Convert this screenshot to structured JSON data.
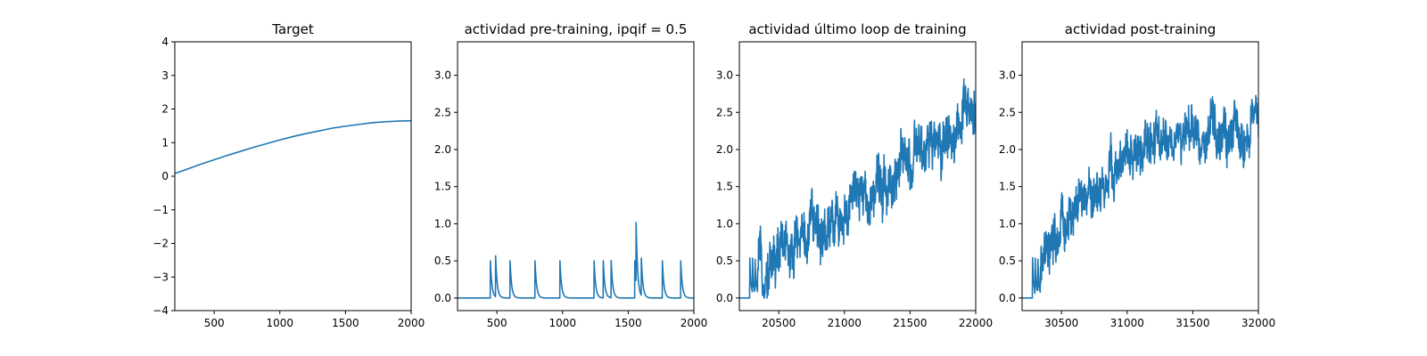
{
  "figure": {
    "line_color": "#1f77b4"
  },
  "chart_data": [
    {
      "type": "line",
      "title": "Target",
      "xlim": [
        200,
        2000
      ],
      "ylim": [
        -4,
        4
      ],
      "xticks": [
        500,
        1000,
        1500,
        2000
      ],
      "yticks": [
        -4,
        -3,
        -2,
        -1,
        0,
        1,
        2,
        3,
        4
      ],
      "series": [
        {
          "x": [
            200,
            300,
            400,
            500,
            600,
            700,
            800,
            900,
            1000,
            1100,
            1200,
            1300,
            1400,
            1500,
            1600,
            1700,
            1800,
            1900,
            2000
          ],
          "y": [
            0.08,
            0.22,
            0.36,
            0.49,
            0.62,
            0.74,
            0.86,
            0.97,
            1.08,
            1.18,
            1.27,
            1.35,
            1.43,
            1.49,
            1.54,
            1.59,
            1.62,
            1.64,
            1.65
          ]
        }
      ]
    },
    {
      "type": "line",
      "title": "actividad pre-training, ipqif = 0.5",
      "xlim": [
        200,
        2000
      ],
      "ylim": [
        -0.17,
        3.45
      ],
      "xticks": [
        500,
        1000,
        1500,
        2000
      ],
      "yticks": [
        0.0,
        0.5,
        1.0,
        1.5,
        2.0,
        2.5,
        3.0
      ],
      "spikes": [
        {
          "t": 450,
          "peak": 0.5
        },
        {
          "t": 490,
          "peak": 0.55
        },
        {
          "t": 600,
          "peak": 0.5
        },
        {
          "t": 790,
          "peak": 0.5
        },
        {
          "t": 980,
          "peak": 0.5
        },
        {
          "t": 1240,
          "peak": 0.5
        },
        {
          "t": 1310,
          "peak": 0.5
        },
        {
          "t": 1370,
          "peak": 0.5
        },
        {
          "t": 1550,
          "peak": 0.5
        },
        {
          "t": 1560,
          "peak": 0.8
        },
        {
          "t": 1600,
          "peak": 0.5
        },
        {
          "t": 1760,
          "peak": 0.5
        },
        {
          "t": 1900,
          "peak": 0.5
        }
      ]
    },
    {
      "type": "line",
      "title": "actividad último loop de training",
      "xlim": [
        20200,
        22000
      ],
      "ylim": [
        -0.17,
        3.45
      ],
      "xticks": [
        20500,
        21000,
        21500,
        22000
      ],
      "yticks": [
        0.0,
        0.5,
        1.0,
        1.5,
        2.0,
        2.5,
        3.0
      ],
      "noisy": {
        "onset": 20280,
        "trend_x": [
          20280,
          20400,
          20600,
          20800,
          21000,
          21200,
          21400,
          21600,
          21800,
          22000
        ],
        "trend_y": [
          0.3,
          0.45,
          0.75,
          0.95,
          1.15,
          1.45,
          1.7,
          1.9,
          2.2,
          2.5
        ],
        "amplitude": 0.5,
        "max": 2.95
      }
    },
    {
      "type": "line",
      "title": "actividad post-training",
      "xlim": [
        30200,
        32000
      ],
      "ylim": [
        -0.17,
        3.45
      ],
      "xticks": [
        30500,
        31000,
        31500,
        32000
      ],
      "yticks": [
        0.0,
        0.5,
        1.0,
        1.5,
        2.0,
        2.5,
        3.0
      ],
      "noisy": {
        "onset": 30280,
        "trend_x": [
          30280,
          30400,
          30500,
          30600,
          30800,
          31000,
          31200,
          31400,
          31600,
          31800,
          32000
        ],
        "trend_y": [
          0.3,
          0.5,
          0.9,
          1.15,
          1.5,
          1.85,
          2.05,
          2.15,
          2.2,
          2.2,
          2.25
        ],
        "amplitude": 0.45,
        "max": 2.85
      }
    }
  ]
}
